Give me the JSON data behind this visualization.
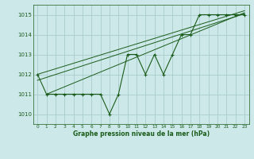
{
  "title": "Graphe pression niveau de la mer (hPa)",
  "bg_color": "#cce8e8",
  "grid_color": "#aacccc",
  "line_color": "#1a5c1a",
  "marker_color": "#1a5c1a",
  "xlim": [
    -0.5,
    23.5
  ],
  "ylim": [
    1009.5,
    1015.5
  ],
  "xticks": [
    0,
    1,
    2,
    3,
    4,
    5,
    6,
    7,
    8,
    9,
    10,
    11,
    12,
    13,
    14,
    15,
    16,
    17,
    18,
    19,
    20,
    21,
    22,
    23
  ],
  "yticks": [
    1010,
    1011,
    1012,
    1013,
    1014,
    1015
  ],
  "hours": [
    0,
    1,
    2,
    3,
    4,
    5,
    6,
    7,
    8,
    9,
    10,
    11,
    12,
    13,
    14,
    15,
    16,
    17,
    18,
    19,
    20,
    21,
    22,
    23
  ],
  "pressure": [
    1012,
    1011,
    1011,
    1011,
    1011,
    1011,
    1011,
    1011,
    1010,
    1011,
    1013,
    1013,
    1012,
    1013,
    1012,
    1013,
    1014,
    1014,
    1015,
    1015,
    1015,
    1015,
    1015,
    1015
  ],
  "trend_line1": [
    [
      0,
      23
    ],
    [
      1012.0,
      1015.2
    ]
  ],
  "trend_line2": [
    [
      0,
      23
    ],
    [
      1011.7,
      1015.05
    ]
  ],
  "trend_line3": [
    [
      1,
      23
    ],
    [
      1011.0,
      1015.1
    ]
  ]
}
